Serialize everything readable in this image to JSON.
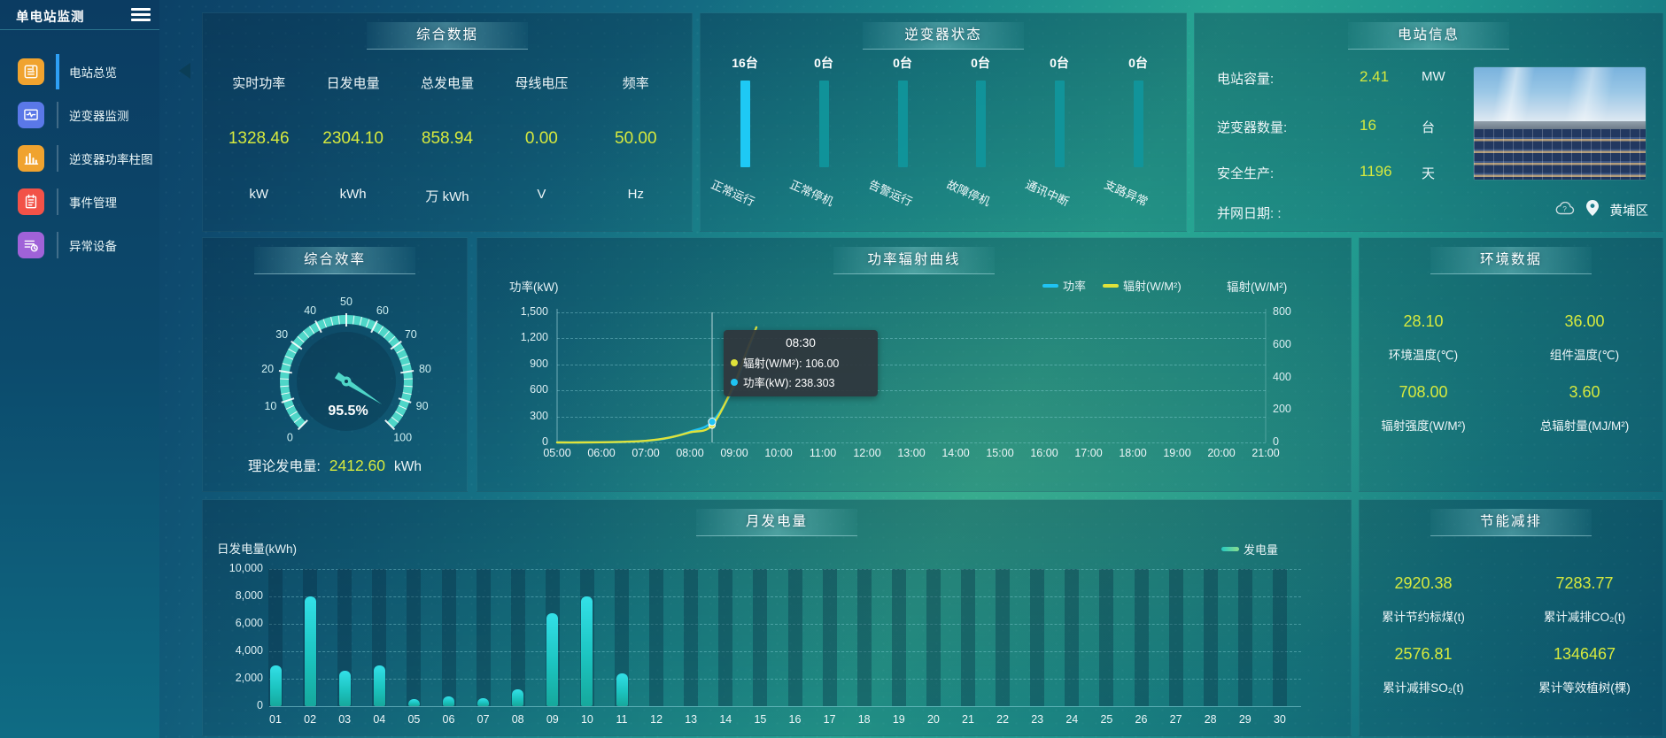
{
  "sidebar": {
    "title": "单电站监测",
    "menu": [
      {
        "label": "电站总览",
        "icon": "overview-doc-icon",
        "color": "#f0a32f",
        "active": true
      },
      {
        "label": "逆变器监测",
        "icon": "inverter-monitor-icon",
        "color": "#5a78e8",
        "active": false
      },
      {
        "label": "逆变器功率柱图",
        "icon": "inverter-power-bars-icon",
        "color": "#f0a32f",
        "active": false
      },
      {
        "label": "事件管理",
        "icon": "event-notebook-icon",
        "color": "#f25248",
        "active": false
      },
      {
        "label": "异常设备",
        "icon": "abnormal-device-icon",
        "color": "#a062d8",
        "active": false
      }
    ]
  },
  "summary": {
    "title": "综合数据",
    "metrics": [
      {
        "label": "实时功率",
        "value": "1328.46",
        "unit": "kW"
      },
      {
        "label": "日发电量",
        "value": "2304.10",
        "unit": "kWh"
      },
      {
        "label": "总发电量",
        "value": "858.94",
        "unit": "万 kWh"
      },
      {
        "label": "母线电压",
        "value": "0.00",
        "unit": "V"
      },
      {
        "label": "频率",
        "value": "50.00",
        "unit": "Hz"
      }
    ]
  },
  "inverter_status": {
    "title": "逆变器状态",
    "unit": "台",
    "bars": [
      {
        "count": "16台",
        "label": "正常运行",
        "value": 16,
        "highlight": true
      },
      {
        "count": "0台",
        "label": "正常停机",
        "value": 0,
        "highlight": false
      },
      {
        "count": "0台",
        "label": "告警运行",
        "value": 0,
        "highlight": false
      },
      {
        "count": "0台",
        "label": "故障停机",
        "value": 0,
        "highlight": false
      },
      {
        "count": "0台",
        "label": "通讯中断",
        "value": 0,
        "highlight": false
      },
      {
        "count": "0台",
        "label": "支路异常",
        "value": 0,
        "highlight": false
      }
    ]
  },
  "station_info": {
    "title": "电站信息",
    "rows": [
      {
        "label": "电站容量:",
        "value": "2.41",
        "unit": "MW"
      },
      {
        "label": "逆变器数量:",
        "value": "16",
        "unit": "台"
      },
      {
        "label": "安全生产:",
        "value": "1196",
        "unit": "天"
      },
      {
        "label": "并网日期: :",
        "value": "",
        "unit": ""
      }
    ],
    "location": "黄埔区"
  },
  "efficiency": {
    "title": "综合效率",
    "gauge": {
      "value": 95.5,
      "display": "95.5%",
      "min": 0,
      "max": 100,
      "tick_labels": [
        "0",
        "10",
        "20",
        "30",
        "40",
        "50",
        "60",
        "70",
        "80",
        "90",
        "100"
      ]
    },
    "theory": {
      "label": "理论发电量:",
      "value": "2412.60",
      "unit": "kWh"
    }
  },
  "power_curve": {
    "title": "功率辐射曲线",
    "y_axis_title": "功率(kW)",
    "y2_axis_title": "辐射(W/M²)",
    "legend": [
      {
        "name": "功率",
        "color": "#1fc3f3"
      },
      {
        "name": "辐射(W/M²)",
        "color": "#dfe23a"
      }
    ],
    "y_ticks": [
      "1,500",
      "1,200",
      "900",
      "600",
      "300",
      "0"
    ],
    "y2_ticks": [
      "800",
      "600",
      "400",
      "200",
      "0"
    ],
    "tooltip": {
      "time": "08:30",
      "items": [
        {
          "color": "#dfe23a",
          "text": "辐射(W/M²): 106.00"
        },
        {
          "color": "#1fc3f3",
          "text": "功率(kW): 238.303"
        }
      ]
    }
  },
  "environment": {
    "title": "环境数据",
    "items": [
      {
        "value": "28.10",
        "label": "环境温度(℃)"
      },
      {
        "value": "36.00",
        "label": "组件温度(℃)"
      },
      {
        "value": "708.00",
        "label": "辐射强度(W/M²)"
      },
      {
        "value": "3.60",
        "label": "总辐射量(MJ/M²)"
      }
    ]
  },
  "monthly": {
    "title": "月发电量",
    "y_axis_title": "日发电量(kWh)",
    "legend": "发电量",
    "y_ticks": [
      "10,000",
      "8,000",
      "6,000",
      "4,000",
      "2,000",
      "0"
    ]
  },
  "energy_saving": {
    "title": "节能减排",
    "items": [
      {
        "value": "2920.38",
        "label": "累计节约标煤(t)"
      },
      {
        "value": "7283.77",
        "label": "累计减排CO₂(t)"
      },
      {
        "value": "2576.81",
        "label": "累计减排SO₂(t)"
      },
      {
        "value": "1346467",
        "label": "累计等效植树(棵)"
      }
    ]
  },
  "chart_data": [
    {
      "id": "power_radiation_curve",
      "type": "line",
      "title": "功率辐射曲线",
      "x_labels": [
        "05:00",
        "06:00",
        "07:00",
        "08:00",
        "09:00",
        "10:00",
        "11:00",
        "12:00",
        "13:00",
        "14:00",
        "15:00",
        "16:00",
        "17:00",
        "18:00",
        "19:00",
        "20:00",
        "21:00"
      ],
      "xlim_hours": [
        5,
        21
      ],
      "ylabel": "功率(kW)",
      "ylim": [
        0,
        1500
      ],
      "y2label": "辐射(W/M²)",
      "y2lim": [
        0,
        800
      ],
      "grid": "dashed",
      "legend_position": "top-right",
      "crosshair_hour": 8.5,
      "series": [
        {
          "name": "功率",
          "axis": "left",
          "color": "#1fc3f3",
          "points": [
            [
              5,
              0
            ],
            [
              5.5,
              0
            ],
            [
              6,
              2
            ],
            [
              6.5,
              6
            ],
            [
              7,
              18
            ],
            [
              7.5,
              50
            ],
            [
              8,
              125
            ],
            [
              8.5,
              238.303
            ],
            [
              9,
              640
            ],
            [
              9.25,
              980
            ],
            [
              9.5,
              1328
            ]
          ]
        },
        {
          "name": "辐射(W/M²)",
          "axis": "right",
          "color": "#dfe23a",
          "points": [
            [
              5,
              0
            ],
            [
              5.5,
              0
            ],
            [
              6,
              1
            ],
            [
              6.5,
              4
            ],
            [
              7,
              10
            ],
            [
              7.5,
              28
            ],
            [
              8,
              62
            ],
            [
              8.5,
              106
            ],
            [
              9,
              360
            ],
            [
              9.25,
              540
            ],
            [
              9.5,
              708
            ]
          ]
        }
      ]
    },
    {
      "id": "monthly_generation",
      "type": "bar",
      "title": "月发电量",
      "categories": [
        "01",
        "02",
        "03",
        "04",
        "05",
        "06",
        "07",
        "08",
        "09",
        "10",
        "11",
        "12",
        "13",
        "14",
        "15",
        "16",
        "17",
        "18",
        "19",
        "20",
        "21",
        "22",
        "23",
        "24",
        "25",
        "26",
        "27",
        "28",
        "29",
        "30"
      ],
      "values": [
        3000,
        8000,
        2600,
        2950,
        500,
        700,
        550,
        1250,
        6750,
        8000,
        2400,
        0,
        0,
        0,
        0,
        0,
        0,
        0,
        0,
        0,
        0,
        0,
        0,
        0,
        0,
        0,
        0,
        0,
        0,
        0
      ],
      "ylabel": "日发电量(kWh)",
      "ylim": [
        0,
        10000
      ],
      "legend": "发电量"
    },
    {
      "id": "efficiency_gauge",
      "type": "gauge",
      "value": 95.5,
      "min": 0,
      "max": 100,
      "unit": "%"
    },
    {
      "id": "inverter_status_bars",
      "type": "bar",
      "categories": [
        "正常运行",
        "正常停机",
        "告警运行",
        "故障停机",
        "通讯中断",
        "支路异常"
      ],
      "values": [
        16,
        0,
        0,
        0,
        0,
        0
      ],
      "unit": "台"
    }
  ]
}
